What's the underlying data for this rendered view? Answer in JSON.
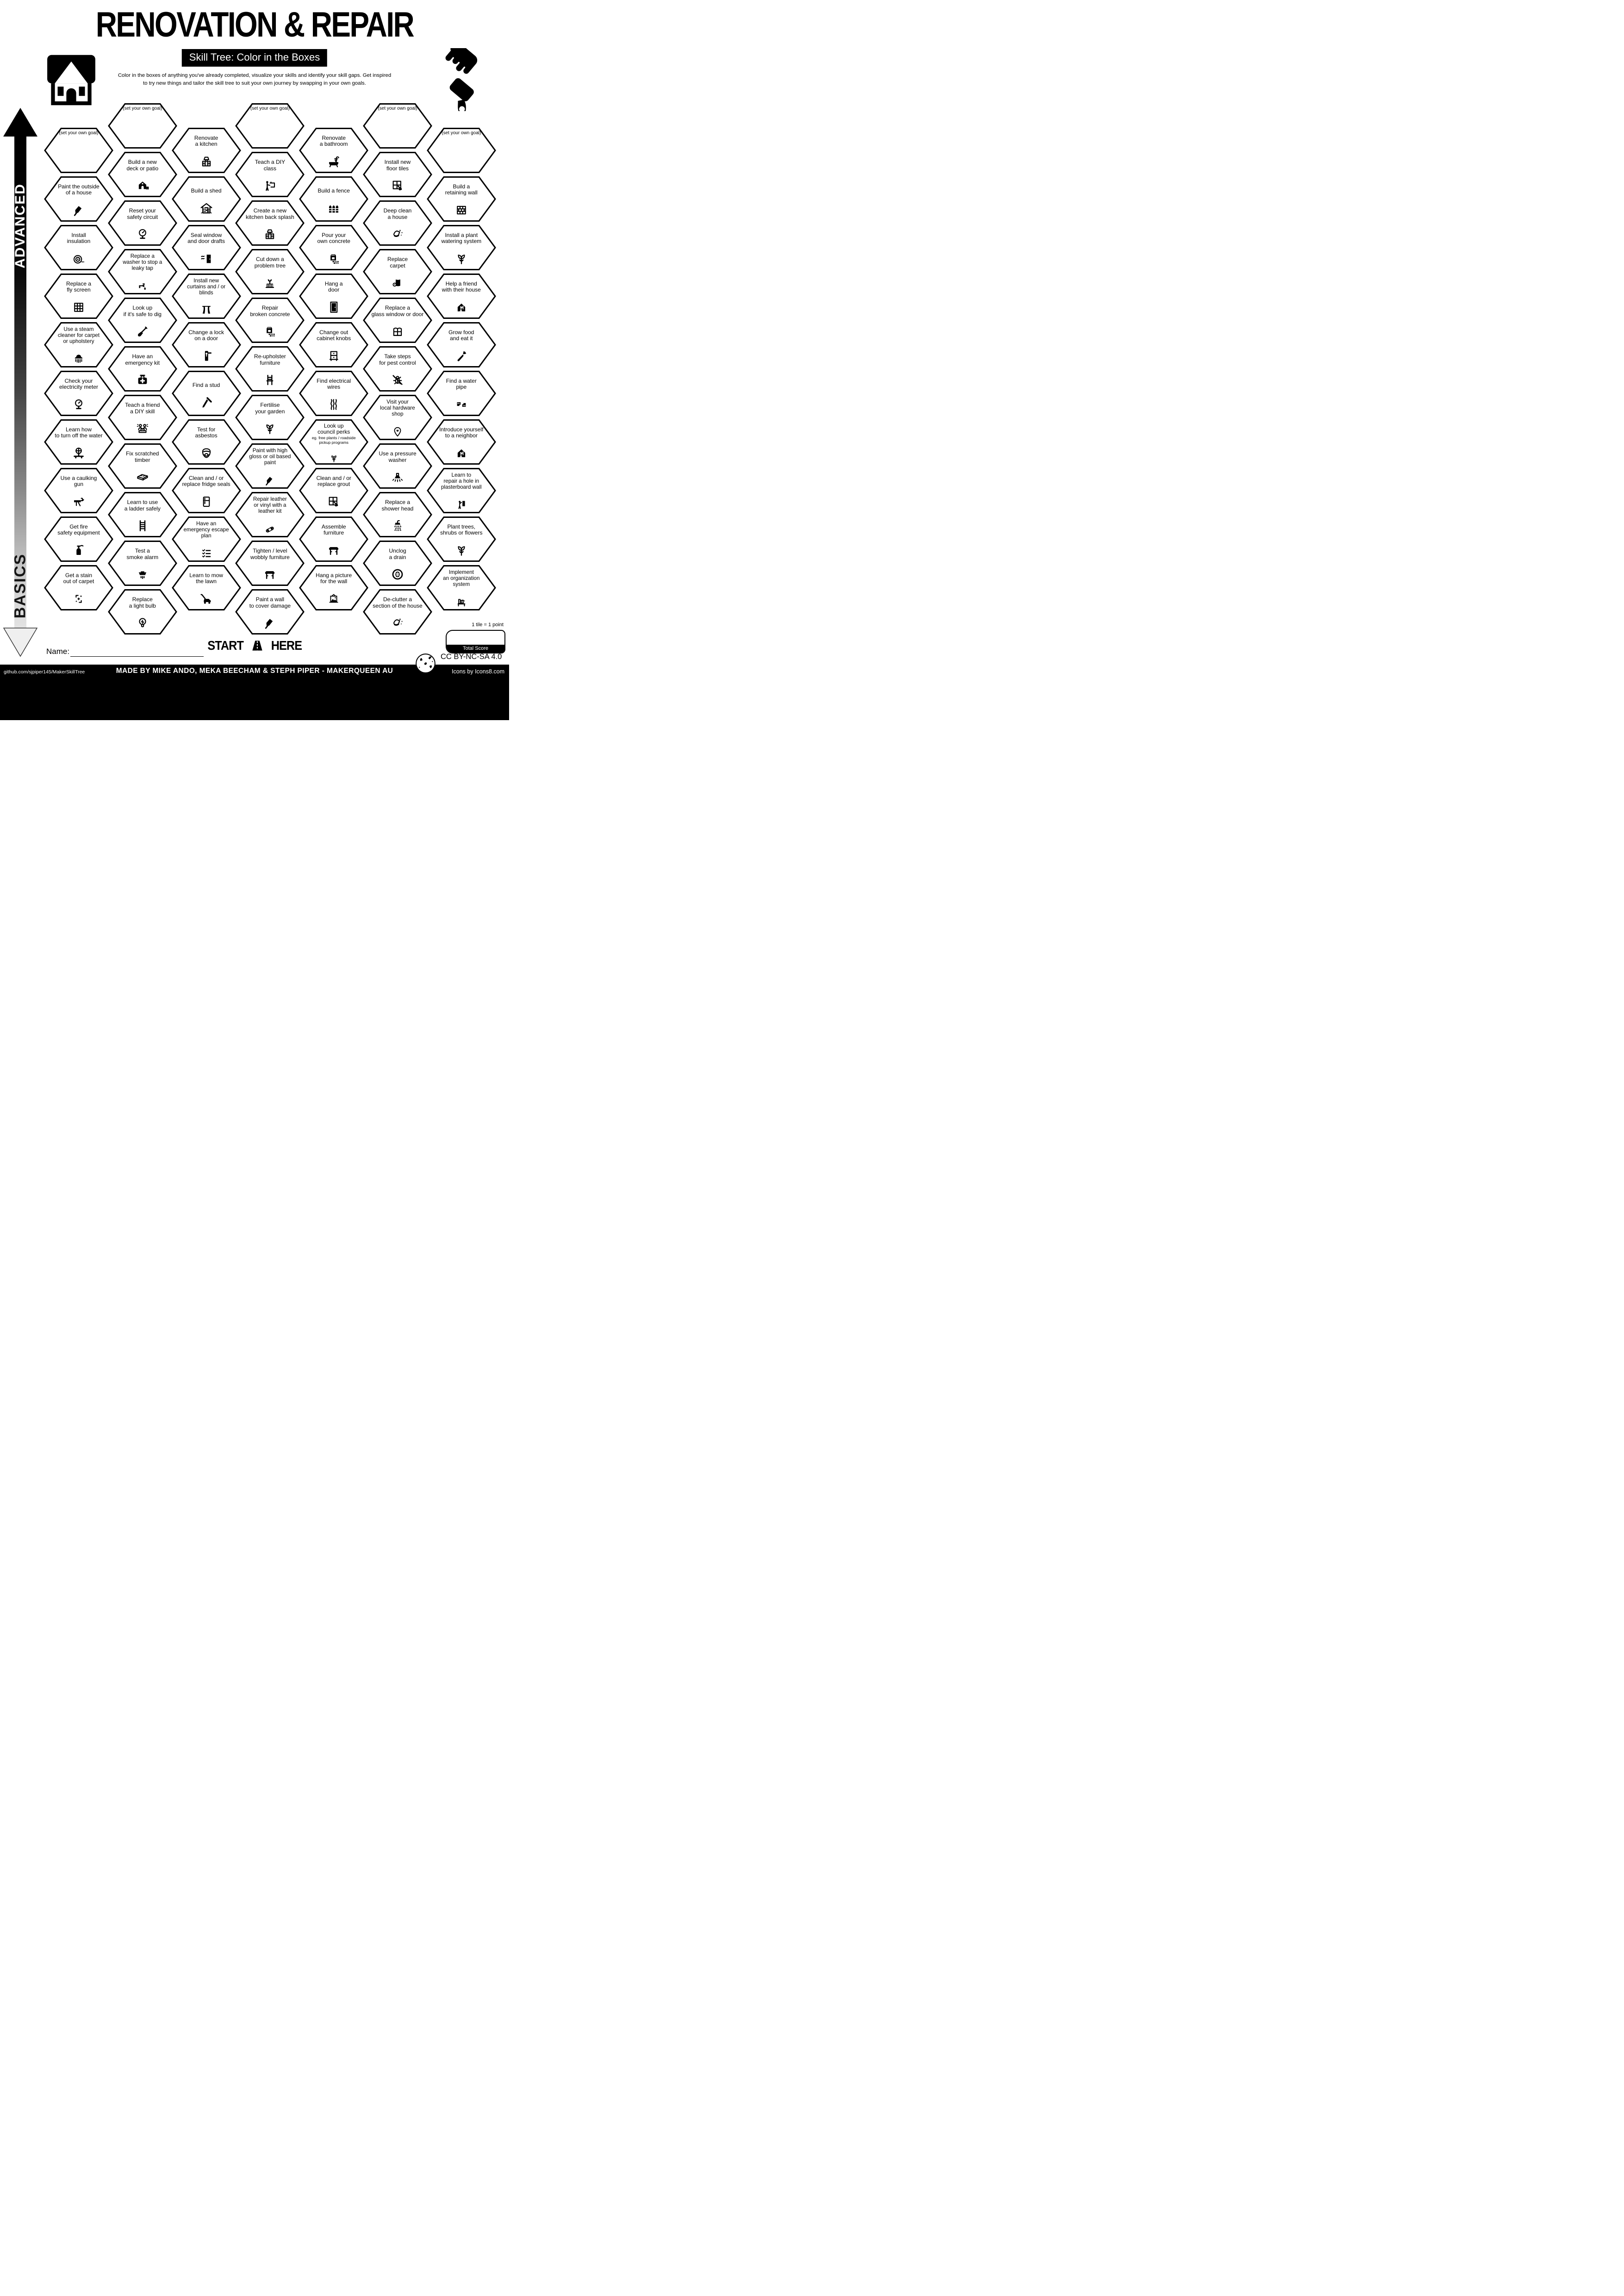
{
  "header": {
    "title": "RENOVATION & REPAIR",
    "subtitle": "Skill Tree: Color in the Boxes",
    "description": "Color in the boxes of anything you've already completed, visualize your skills and identify your skill gaps.  Get inspired\nto try new things and tailor the skill tree to suit your own journey by swapping in your own goals."
  },
  "axis": {
    "advanced": "ADVANCED",
    "basics": "BASICS"
  },
  "start": {
    "start_word": "START",
    "here_word": "HERE"
  },
  "name_label": "Name:",
  "score": {
    "tile_note": "1 tile = 1 point",
    "total_label": "Total Score"
  },
  "license": "CC BY-NC-SA 4.0",
  "footer": {
    "left": "github.com/sjpiper145/MakerSkillTree",
    "center": "MADE BY MIKE ANDO, MEKA BEECHAM & STEPH PIPER  -  MAKERQUEEN AU",
    "right": "Icons by Icons8.com"
  },
  "colors": {
    "ink": "#000000",
    "paper": "#ffffff"
  },
  "hexes": [
    {
      "col": 0,
      "row": 0,
      "goal": true,
      "label": "(set your own goal)",
      "icon": null
    },
    {
      "col": 0,
      "row": 1,
      "label": "Paint the outside\nof a house",
      "icon": "paint-brush-icon"
    },
    {
      "col": 0,
      "row": 2,
      "label": "Install\ninsulation",
      "icon": "insulation-roll-icon"
    },
    {
      "col": 0,
      "row": 3,
      "label": "Replace a\nfly screen",
      "icon": "fly-screen-icon"
    },
    {
      "col": 0,
      "row": 4,
      "label": "Use a steam\ncleaner for carpet\nor upholstery",
      "icon": "steam-cleaner-icon"
    },
    {
      "col": 0,
      "row": 5,
      "label": "Check your\nelectricity meter",
      "icon": "gauge-icon"
    },
    {
      "col": 0,
      "row": 6,
      "label": "Learn how\nto turn off the water",
      "icon": "water-valve-icon"
    },
    {
      "col": 0,
      "row": 7,
      "label": "Use a caulking\ngun",
      "icon": "caulking-gun-icon"
    },
    {
      "col": 0,
      "row": 8,
      "label": "Get fire\nsafety equipment",
      "icon": "fire-extinguisher-icon"
    },
    {
      "col": 0,
      "row": 9,
      "label": "Get a stain\nout of carpet",
      "icon": "stain-sparkle-icon"
    },
    {
      "col": 1,
      "row": 0,
      "goal": true,
      "label": "(set your own goal)",
      "icon": null
    },
    {
      "col": 1,
      "row": 1,
      "label": "Build a new\ndeck or patio",
      "icon": "deck-house-icon"
    },
    {
      "col": 1,
      "row": 2,
      "label": "Reset your\nsafety circuit",
      "icon": "gauge-icon"
    },
    {
      "col": 1,
      "row": 3,
      "label": "Replace a\nwasher to stop a\nleaky tap",
      "icon": "leaky-tap-icon"
    },
    {
      "col": 1,
      "row": 4,
      "label": "Look up\nif it's safe to dig",
      "icon": "shovel-icon"
    },
    {
      "col": 1,
      "row": 5,
      "label": "Have an\nemergency kit",
      "icon": "first-aid-kit-icon"
    },
    {
      "col": 1,
      "row": 6,
      "label": "Teach a friend\na DIY skill",
      "icon": "friends-laptop-icon"
    },
    {
      "col": 1,
      "row": 7,
      "label": "Fix scratched\ntimber",
      "icon": "timber-plank-icon"
    },
    {
      "col": 1,
      "row": 8,
      "label": "Learn to use\na ladder safely",
      "icon": "ladder-icon"
    },
    {
      "col": 1,
      "row": 9,
      "label": "Test a\nsmoke alarm",
      "icon": "smoke-alarm-icon"
    },
    {
      "col": 1,
      "row": 10,
      "label": "Replace\na light bulb",
      "icon": "light-bulb-icon"
    },
    {
      "col": 2,
      "row": 0,
      "label": "Renovate\na kitchen",
      "icon": "kitchen-cabinet-icon"
    },
    {
      "col": 2,
      "row": 1,
      "label": "Build a shed",
      "icon": "shed-icon"
    },
    {
      "col": 2,
      "row": 2,
      "label": "Seal window\nand door drafts",
      "icon": "door-draft-icon"
    },
    {
      "col": 2,
      "row": 3,
      "label": "Install new\ncurtains and / or\nblinds",
      "icon": "curtains-icon"
    },
    {
      "col": 2,
      "row": 4,
      "label": "Change a lock\non a door",
      "icon": "door-lock-icon"
    },
    {
      "col": 2,
      "row": 5,
      "label": "Find a stud",
      "icon": "nail-icon"
    },
    {
      "col": 2,
      "row": 6,
      "label": "Test for\nasbestos",
      "icon": "respirator-icon"
    },
    {
      "col": 2,
      "row": 7,
      "label": "Clean and / or\nreplace fridge seals",
      "icon": "fridge-icon"
    },
    {
      "col": 2,
      "row": 8,
      "label": "Have an\nemergency escape\nplan",
      "icon": "checklist-icon"
    },
    {
      "col": 2,
      "row": 9,
      "label": "Learn to mow\nthe lawn",
      "icon": "lawn-mower-icon"
    },
    {
      "col": 3,
      "row": 0,
      "goal": true,
      "label": "(set your own goal)",
      "icon": null
    },
    {
      "col": 3,
      "row": 1,
      "label": "Teach a DIY\nclass",
      "icon": "teacher-board-icon"
    },
    {
      "col": 3,
      "row": 2,
      "label": "Create a new\nkitchen back splash",
      "icon": "kitchen-cabinet-icon"
    },
    {
      "col": 3,
      "row": 3,
      "label": "Cut down a\nproblem tree",
      "icon": "tree-stump-icon"
    },
    {
      "col": 3,
      "row": 4,
      "label": "Repair\nbroken concrete",
      "icon": "concrete-bag-icon"
    },
    {
      "col": 3,
      "row": 5,
      "label": "Re-upholster\nfurniture",
      "icon": "chair-icon"
    },
    {
      "col": 3,
      "row": 6,
      "label": "Fertilise\nyour garden",
      "icon": "sprout-icon"
    },
    {
      "col": 3,
      "row": 7,
      "label": "Paint with high\ngloss or oil based\npaint",
      "icon": "paint-brush-icon"
    },
    {
      "col": 3,
      "row": 8,
      "label": "Repair leather\nor vinyl with a\nleather kit",
      "icon": "leather-patch-icon"
    },
    {
      "col": 3,
      "row": 9,
      "label": "Tighten / level\nwobbly furniture",
      "icon": "table-icon"
    },
    {
      "col": 3,
      "row": 10,
      "label": "Paint a wall\nto cover damage",
      "icon": "paint-brush-icon"
    },
    {
      "col": 4,
      "row": 0,
      "label": "Renovate\na bathroom",
      "icon": "bathtub-icon"
    },
    {
      "col": 4,
      "row": 1,
      "label": "Build a fence",
      "icon": "fence-icon"
    },
    {
      "col": 4,
      "row": 2,
      "label": "Pour your\nown concrete",
      "icon": "concrete-bag-icon"
    },
    {
      "col": 4,
      "row": 3,
      "label": "Hang a\ndoor",
      "icon": "door-icon"
    },
    {
      "col": 4,
      "row": 4,
      "label": "Change out\ncabinet knobs",
      "icon": "drawer-knobs-icon"
    },
    {
      "col": 4,
      "row": 5,
      "label": "Find electrical\nwires",
      "icon": "wires-icon"
    },
    {
      "col": 4,
      "row": 6,
      "label": "Look up\ncouncil perks",
      "sub": "eg. free plants / roadside\npickup programs",
      "icon": "sprout-icon"
    },
    {
      "col": 4,
      "row": 7,
      "label": "Clean and / or\nreplace grout",
      "icon": "tile-trowel-icon"
    },
    {
      "col": 4,
      "row": 8,
      "label": "Assemble\nfurniture",
      "icon": "table-icon"
    },
    {
      "col": 4,
      "row": 9,
      "label": "Hang a picture\nfor the wall",
      "icon": "picture-frame-icon"
    },
    {
      "col": 5,
      "row": 0,
      "goal": true,
      "label": "(set your own goal)",
      "icon": null
    },
    {
      "col": 5,
      "row": 1,
      "label": "Install new\nfloor tiles",
      "icon": "tile-trowel-icon"
    },
    {
      "col": 5,
      "row": 2,
      "label": "Deep clean\na house",
      "icon": "wipe-hand-icon"
    },
    {
      "col": 5,
      "row": 3,
      "label": "Replace\ncarpet",
      "icon": "carpet-roll-icon"
    },
    {
      "col": 5,
      "row": 4,
      "label": "Replace a\nglass window or door",
      "icon": "window-icon"
    },
    {
      "col": 5,
      "row": 5,
      "label": "Take steps\nfor pest control",
      "icon": "pest-bug-icon"
    },
    {
      "col": 5,
      "row": 6,
      "label": "Visit your\nlocal hardware\nshop",
      "icon": "map-pin-icon"
    },
    {
      "col": 5,
      "row": 7,
      "label": "Use a pressure\nwasher",
      "icon": "pressure-washer-icon"
    },
    {
      "col": 5,
      "row": 8,
      "label": "Replace a\nshower head",
      "icon": "shower-head-icon"
    },
    {
      "col": 5,
      "row": 9,
      "label": "Unclog\na drain",
      "icon": "drain-icon"
    },
    {
      "col": 5,
      "row": 10,
      "label": "De-clutter a\nsection of the house",
      "icon": "wipe-hand-icon"
    },
    {
      "col": 6,
      "row": 0,
      "goal": true,
      "label": "(set your own goal)",
      "icon": null
    },
    {
      "col": 6,
      "row": 1,
      "label": "Build a\nretaining wall",
      "icon": "brick-wall-icon"
    },
    {
      "col": 6,
      "row": 2,
      "label": "Install a plant\nwatering system",
      "icon": "sprout-icon"
    },
    {
      "col": 6,
      "row": 3,
      "label": "Help a friend\nwith their house",
      "icon": "house-person-icon"
    },
    {
      "col": 6,
      "row": 4,
      "label": "Grow food\nand eat it",
      "icon": "carrot-icon"
    },
    {
      "col": 6,
      "row": 5,
      "label": "Find a water\npipe",
      "icon": "water-pipe-icon"
    },
    {
      "col": 6,
      "row": 6,
      "label": "Introduce yourself\nto a neighbor",
      "icon": "house-person-icon"
    },
    {
      "col": 6,
      "row": 7,
      "label": "Learn to\nrepair a hole in\nplasterboard wall",
      "icon": "wall-repair-icon"
    },
    {
      "col": 6,
      "row": 8,
      "label": "Plant trees,\nshrubs or flowers",
      "icon": "sprout-icon"
    },
    {
      "col": 6,
      "row": 9,
      "label": "Implement\nan organization\nsystem",
      "icon": "shelf-icon"
    }
  ]
}
